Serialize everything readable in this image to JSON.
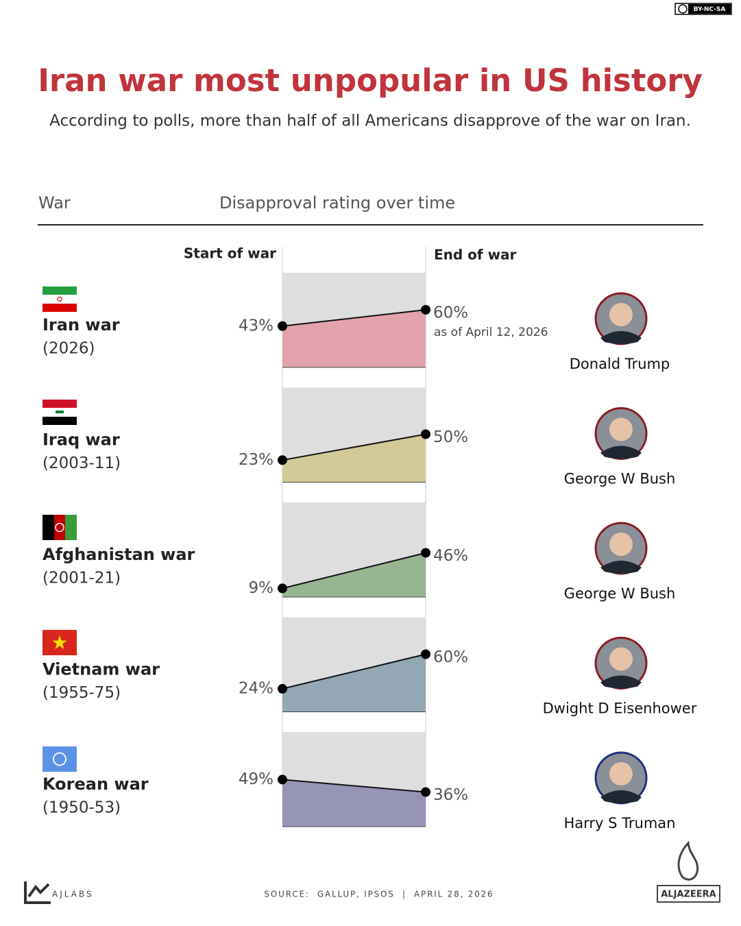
{
  "chart_data": {
    "type": "slope",
    "title": "Iran war most unpopular in US history",
    "subtitle": "According to polls, more than half of all Americans disapprove of the war on Iran.",
    "column_headers": {
      "war": "War",
      "rating": "Disapproval rating over time"
    },
    "categories": [
      "Iran war",
      "Iraq war",
      "Afghanistan war",
      "Vietnam war",
      "Korean war"
    ],
    "years": [
      "(2026)",
      "(2003-11)",
      "(2001-21)",
      "(1955-75)",
      "(1950-53)"
    ],
    "presidents": [
      "Donald Trump",
      "George W Bush",
      "George W Bush",
      "Dwight D Eisenhower",
      "Harry S Truman"
    ],
    "colors": [
      "#e3a3ac",
      "#d3c996",
      "#98b592",
      "#93a7b5",
      "#9795b5"
    ],
    "series": [
      {
        "name": "Start of war",
        "values": [
          43,
          23,
          9,
          24,
          49
        ],
        "value_labels": [
          "43%",
          "23%",
          "9%",
          "24%",
          "49%"
        ]
      },
      {
        "name": "End of war",
        "values": [
          60,
          50,
          46,
          60,
          36
        ],
        "value_labels": [
          "60%",
          "50%",
          "46%",
          "60%",
          "36%"
        ]
      }
    ],
    "annotation": {
      "category": "Iran war",
      "text": "as of April 12, 2026"
    },
    "ylim": [
      0,
      100
    ],
    "source": "SOURCE:  GALLUP, IPSOS  |  APRIL 28, 2026",
    "brand": "AJLABS",
    "publisher": "ALJAZEERA",
    "license": "BY-NC-SA"
  }
}
